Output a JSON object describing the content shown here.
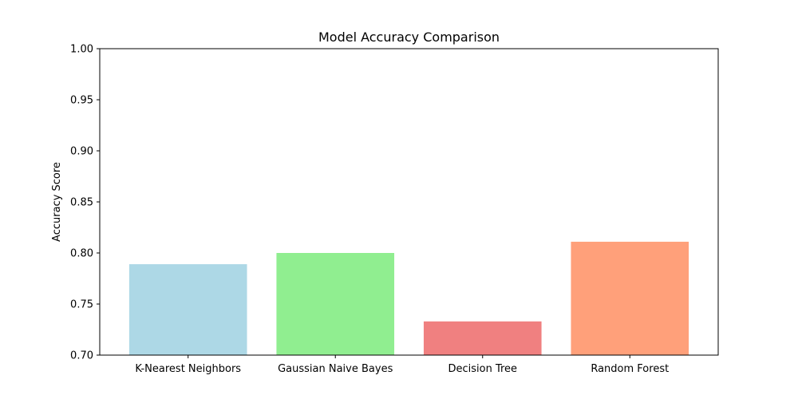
{
  "chart_data": {
    "type": "bar",
    "title": "Model Accuracy Comparison",
    "xlabel": "",
    "ylabel": "Accuracy Score",
    "categories": [
      "K-Nearest Neighbors",
      "Gaussian Naive Bayes",
      "Decision Tree",
      "Random Forest"
    ],
    "values": [
      0.789,
      0.8,
      0.733,
      0.811
    ],
    "colors": [
      "#add8e6",
      "#90ee90",
      "#f08080",
      "#ffa07a"
    ],
    "ylim": [
      0.7,
      1.0
    ],
    "yticks": [
      "0.70",
      "0.75",
      "0.80",
      "0.85",
      "0.90",
      "0.95",
      "1.00"
    ],
    "grid": false,
    "legend": "none"
  }
}
